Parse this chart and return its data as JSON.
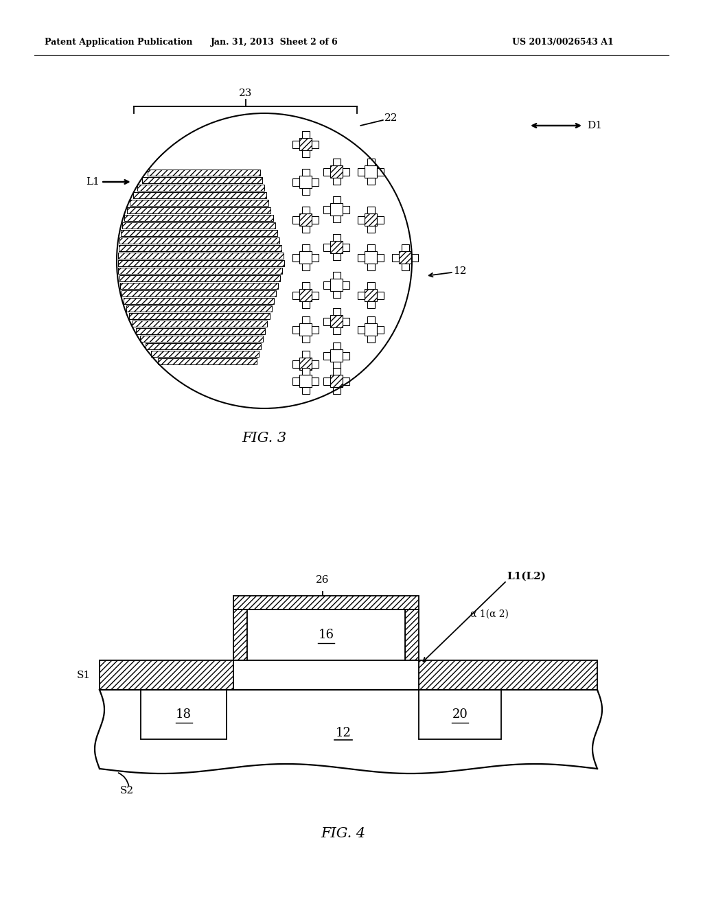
{
  "background_color": "#ffffff",
  "header_left": "Patent Application Publication",
  "header_mid": "Jan. 31, 2013  Sheet 2 of 6",
  "header_right": "US 2013/0026543 A1",
  "fig3_label": "FIG. 3",
  "fig4_label": "FIG. 4",
  "line_color": "#000000"
}
